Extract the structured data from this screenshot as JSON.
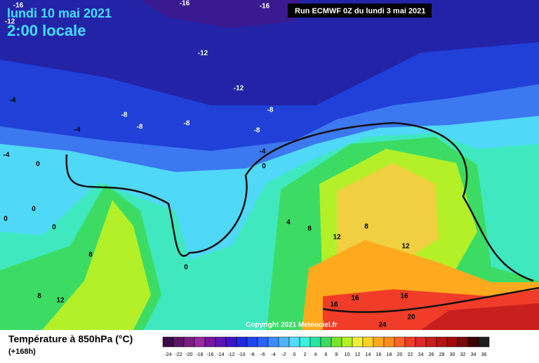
{
  "header": {
    "title": "lundi 10 mai 2021",
    "time": "2:00 locale",
    "run": "Run ECMWF 0Z du lundi 3 mai 2021"
  },
  "map": {
    "contour_labels": [
      -16,
      -16,
      -16,
      -12,
      -12,
      -12,
      -8,
      -8,
      -8,
      -8,
      -8,
      -4,
      -4,
      -4,
      -4,
      0,
      0,
      0,
      0,
      0,
      0,
      4,
      8,
      8,
      8,
      12,
      12,
      8,
      12,
      16,
      16,
      16,
      20,
      24
    ],
    "copyright": "Copyright 2021 Meteociel.fr"
  },
  "legend": {
    "title": "Température à 850hPa (°C)",
    "lead": "(+168h)",
    "ticks": [
      -24,
      -22,
      -20,
      -18,
      -16,
      -14,
      -12,
      -10,
      -8,
      -6,
      -4,
      -2,
      0,
      2,
      4,
      6,
      8,
      10,
      12,
      14,
      16,
      18,
      20,
      22,
      24,
      26,
      28,
      30,
      32,
      34,
      36
    ],
    "colors": [
      "#3c0a46",
      "#5a1464",
      "#781e82",
      "#9628a0",
      "#7814a0",
      "#5a14b4",
      "#3c14c8",
      "#1e28dc",
      "#1e46f0",
      "#2864ff",
      "#3c8cff",
      "#50b4ff",
      "#50dcff",
      "#3cf0dc",
      "#28e6a0",
      "#3cdc64",
      "#78e628",
      "#b4f028",
      "#f0f03c",
      "#ffd228",
      "#ffaa1e",
      "#ff8c1e",
      "#ff6428",
      "#f03c28",
      "#dc2828",
      "#c81e1e",
      "#b41414",
      "#a00a0a",
      "#780a0a",
      "#3c0000",
      "#1e1e1e"
    ]
  }
}
